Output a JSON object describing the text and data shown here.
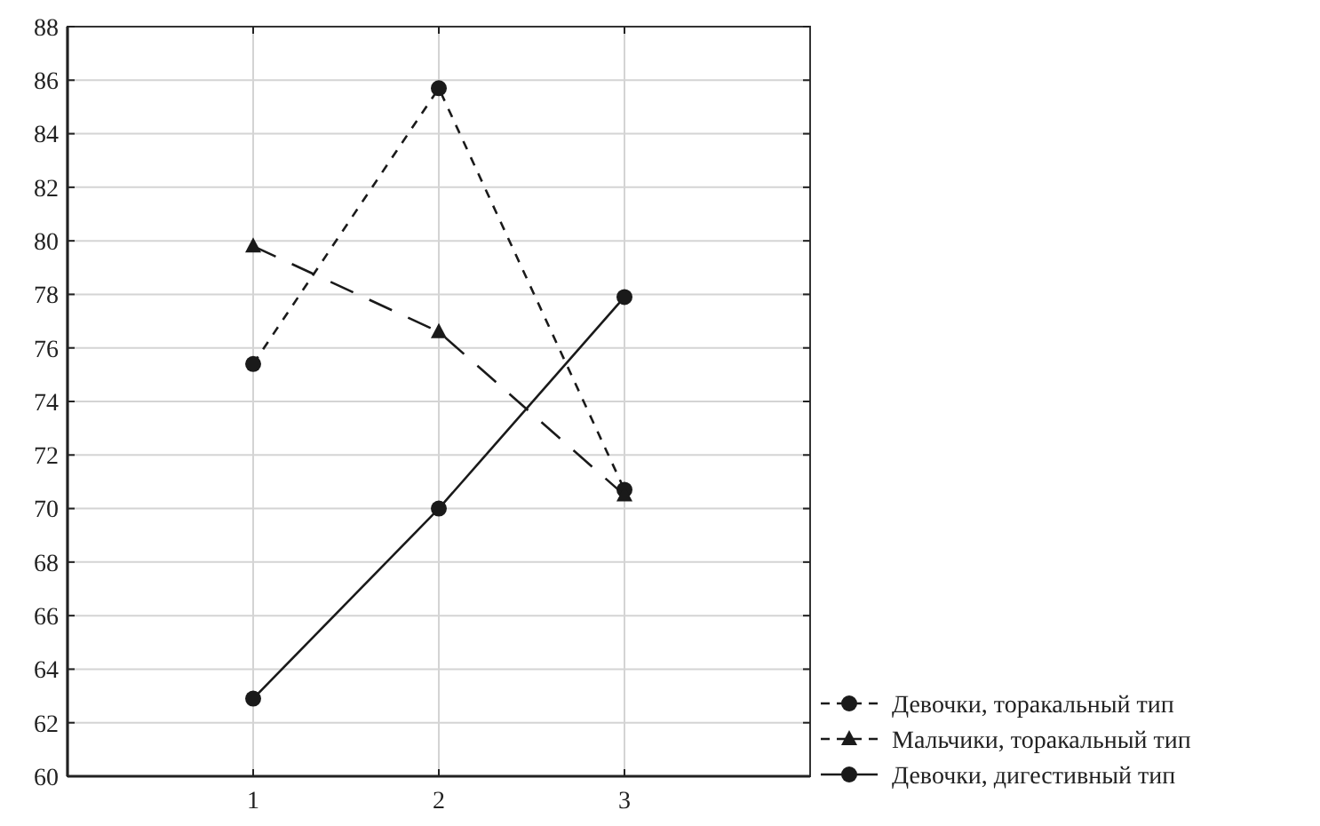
{
  "chart_data": {
    "type": "line",
    "x": [
      1,
      2,
      3
    ],
    "xlim": [
      0,
      4
    ],
    "xticks": [
      1,
      2,
      3
    ],
    "ylim": [
      60,
      88
    ],
    "yticks": [
      60,
      62,
      64,
      66,
      68,
      70,
      72,
      74,
      76,
      78,
      80,
      82,
      84,
      86,
      88
    ],
    "grid": true,
    "legend": "bottom right",
    "series": [
      {
        "name": "Девочки, торакальный тип",
        "color": "#1a1a1a",
        "values": [
          75.4,
          85.7,
          70.7
        ],
        "marker": "circle",
        "line_style": "dashed"
      },
      {
        "name": "Мальчики, торакальный тип",
        "color": "#1a1a1a",
        "values": [
          79.8,
          76.6,
          70.5
        ],
        "marker": "triangle",
        "line_style": "longdash"
      },
      {
        "name": "Девочки, дигестивный тип",
        "color": "#1a1a1a",
        "values": [
          62.9,
          70.0,
          77.9
        ],
        "marker": "circle",
        "line_style": "solid"
      }
    ]
  }
}
